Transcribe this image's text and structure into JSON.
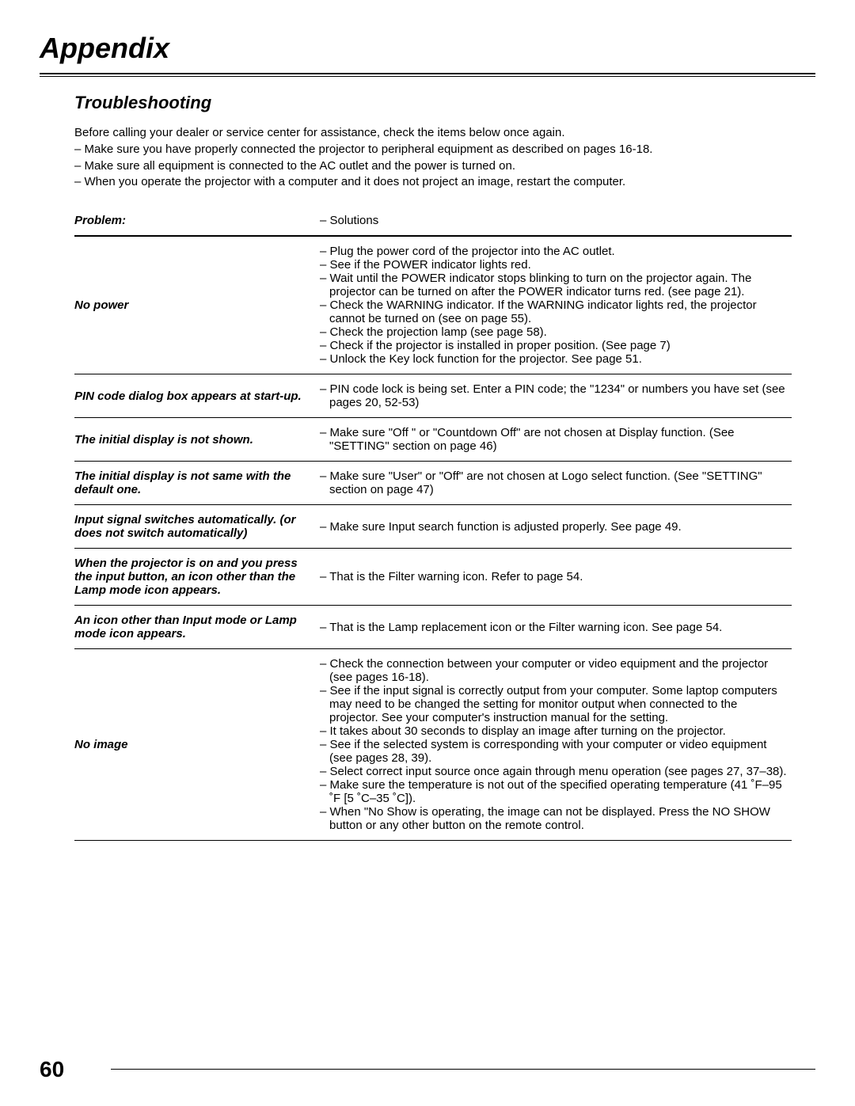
{
  "colors": {
    "background": "#ffffff",
    "text": "#000000",
    "rule": "#000000"
  },
  "typography": {
    "body_family": "Arial, Helvetica, sans-serif",
    "body_size_pt": 15,
    "appendix_title_size_pt": 36,
    "section_title_size_pt": 22,
    "page_num_size_pt": 28
  },
  "page_number": "60",
  "appendix_title": "Appendix",
  "section_title": "Troubleshooting",
  "intro": {
    "line1": "Before calling your dealer or service center for assistance, check the items below once again.",
    "line2": "– Make sure you have properly connected the projector to peripheral equipment as described on pages 16-18.",
    "line3": "– Make sure all equipment is connected to the AC outlet and the power is turned on.",
    "line4": "– When you operate the projector with a computer and it does not project an image, restart the computer."
  },
  "table": {
    "header_problem": "Problem:",
    "header_solutions": "– Solutions",
    "rows": [
      {
        "problem": "No power",
        "solution": "– Plug the power cord of the projector into the AC outlet.\n– See if the POWER indicator lights red.\n– Wait until the POWER indicator stops blinking to turn on the projector again. The projector can be turned on after the POWER indicator turns red. (see page 21).\n– Check the WARNING indicator. If the WARNING indicator lights red, the projector cannot be turned on (see on page 55).\n– Check the projection lamp (see page 58).\n– Check if the projector is installed in proper position. (See page 7)\n– Unlock the Key lock function for the projector. See page 51.",
        "justify": true
      },
      {
        "problem": "PIN code dialog box appears at start-up.",
        "solution": "– PIN code lock is being set. Enter a PIN code; the \"1234\" or numbers you have set (see pages 20, 52-53)",
        "justify": true
      },
      {
        "problem": "The initial display is not shown.",
        "solution": "– Make sure \"Off \" or \"Countdown Off\" are not chosen at Display function. (See \"SETTING\" section on page 46)",
        "justify": true
      },
      {
        "problem": "The initial display is not same with the default one.",
        "solution": "– Make sure \"User\" or \"Off\" are not chosen at Logo select function.  (See \"SETTING\" section on page 47)",
        "justify": true
      },
      {
        "problem": "Input signal switches automatically. (or does not switch automatically)",
        "solution": "– Make sure Input search function is adjusted properly. See page 49.",
        "justify": false
      },
      {
        "problem": "When the projector is on and you press the input button, an icon other than the Lamp mode icon appears.",
        "solution": "– That is the Filter warning icon. Refer to page 54.",
        "justify": false
      },
      {
        "problem": "An icon other than Input mode or Lamp mode icon appears.",
        "solution": "– That is the Lamp replacement icon or the Filter warning icon.  See page 54.",
        "justify": true
      },
      {
        "problem": "No image",
        "solution": "– Check the connection between your computer or video equipment and the projector (see pages 16-18).\n– See if the input signal is correctly output from your computer. Some laptop computers may need to be changed the setting for monitor output when connected to the projector. See your computer's instruction manual for the setting.\n– It takes about 30 seconds to display an image after turning on the projector.\n– See if the selected system is corresponding with your computer or video equipment (see pages 28, 39).\n– Select correct input source once again through menu operation (see pages 27, 37–38).\n– Make sure the temperature is not out of the specified operating temperature (41 ˚F–95 ˚F [5 ˚C–35 ˚C]).\n– When \"No Show is operating, the image can not be displayed.  Press the NO SHOW button or any other button on the remote control.",
        "justify": true
      }
    ]
  }
}
